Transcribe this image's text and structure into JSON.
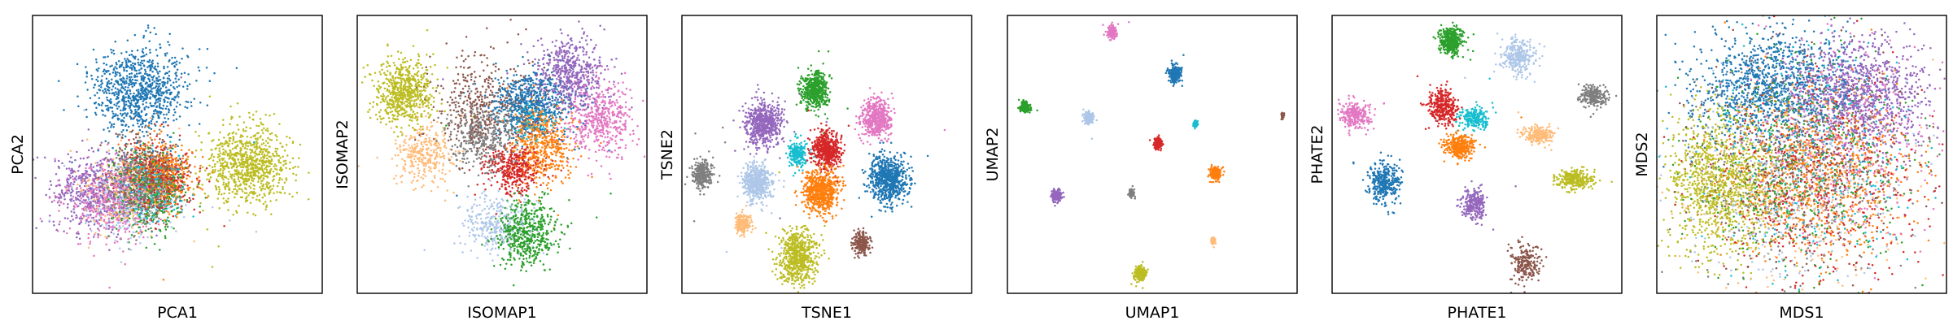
{
  "palette": {
    "blue": "#1f77b4",
    "light_blue": "#aec7e8",
    "orange": "#ff7f0e",
    "light_orange": "#ffbb78",
    "green": "#2ca02c",
    "red": "#d62728",
    "purple": "#9467bd",
    "brown": "#8c564b",
    "pink": "#e377c2",
    "gray": "#7f7f7f",
    "olive": "#bcbd22",
    "cyan": "#17becf"
  },
  "chart_data": [
    {
      "type": "scatter",
      "xlabel": "PCA1",
      "ylabel": "PCA2",
      "xlim": [
        0,
        100
      ],
      "ylim": [
        0,
        100
      ],
      "grid": false,
      "ticks": false,
      "clusters": [
        {
          "color": "blue",
          "cx": 37,
          "cy": 73,
          "sx": 8,
          "sy": 8,
          "n": 900
        },
        {
          "color": "purple",
          "cx": 22,
          "cy": 37,
          "sx": 8,
          "sy": 7,
          "n": 520
        },
        {
          "color": "pink",
          "cx": 27,
          "cy": 34,
          "sx": 8,
          "sy": 7,
          "n": 420
        },
        {
          "color": "light_blue",
          "cx": 33,
          "cy": 33,
          "sx": 7,
          "sy": 7,
          "n": 300
        },
        {
          "color": "light_orange",
          "cx": 31,
          "cy": 37,
          "sx": 7,
          "sy": 7,
          "n": 300
        },
        {
          "color": "gray",
          "cx": 38,
          "cy": 40,
          "sx": 6,
          "sy": 7,
          "n": 320
        },
        {
          "color": "brown",
          "cx": 39,
          "cy": 42,
          "sx": 6,
          "sy": 6,
          "n": 340
        },
        {
          "color": "cyan",
          "cx": 42,
          "cy": 38,
          "sx": 5,
          "sy": 6,
          "n": 260
        },
        {
          "color": "red",
          "cx": 43,
          "cy": 41,
          "sx": 6,
          "sy": 6,
          "n": 360
        },
        {
          "color": "orange",
          "cx": 45,
          "cy": 43,
          "sx": 6,
          "sy": 6,
          "n": 420
        },
        {
          "color": "green",
          "cx": 41,
          "cy": 36,
          "sx": 6,
          "sy": 7,
          "n": 380
        },
        {
          "color": "olive",
          "cx": 74,
          "cy": 46,
          "sx": 7,
          "sy": 7,
          "n": 850
        }
      ]
    },
    {
      "type": "scatter",
      "xlabel": "ISOMAP1",
      "ylabel": "ISOMAP2",
      "xlim": [
        0,
        100
      ],
      "ylim": [
        0,
        100
      ],
      "grid": false,
      "ticks": false,
      "clusters": [
        {
          "color": "olive",
          "cx": 16,
          "cy": 72,
          "sx": 5,
          "sy": 6,
          "n": 650
        },
        {
          "color": "light_orange",
          "cx": 23,
          "cy": 50,
          "sx": 5,
          "sy": 6,
          "n": 320
        },
        {
          "color": "brown",
          "cx": 44,
          "cy": 67,
          "sx": 9,
          "sy": 9,
          "n": 420
        },
        {
          "color": "gray",
          "cx": 43,
          "cy": 57,
          "sx": 6,
          "sy": 6,
          "n": 380
        },
        {
          "color": "blue",
          "cx": 60,
          "cy": 68,
          "sx": 7,
          "sy": 6,
          "n": 650
        },
        {
          "color": "orange",
          "cx": 64,
          "cy": 53,
          "sx": 5,
          "sy": 7,
          "n": 520
        },
        {
          "color": "red",
          "cx": 54,
          "cy": 45,
          "sx": 5,
          "sy": 4,
          "n": 380
        },
        {
          "color": "purple",
          "cx": 73,
          "cy": 79,
          "sx": 6,
          "sy": 6,
          "n": 560
        },
        {
          "color": "pink",
          "cx": 83,
          "cy": 63,
          "sx": 6,
          "sy": 7,
          "n": 480
        },
        {
          "color": "light_blue",
          "cx": 48,
          "cy": 25,
          "sx": 6,
          "sy": 5,
          "n": 300
        },
        {
          "color": "green",
          "cx": 58,
          "cy": 22,
          "sx": 5,
          "sy": 6,
          "n": 560
        },
        {
          "color": "cyan",
          "cx": 60,
          "cy": 62,
          "sx": 4,
          "sy": 4,
          "n": 90
        }
      ]
    },
    {
      "type": "scatter",
      "xlabel": "TSNE1",
      "ylabel": "TSNE2",
      "xlim": [
        0,
        100
      ],
      "ylim": [
        0,
        100
      ],
      "grid": false,
      "ticks": false,
      "clusters": [
        {
          "color": "green",
          "cx": 46,
          "cy": 73,
          "sx": 2.2,
          "sy": 3,
          "n": 520
        },
        {
          "color": "purple",
          "cx": 28,
          "cy": 61,
          "sx": 3.2,
          "sy": 4,
          "n": 600
        },
        {
          "color": "pink",
          "cx": 67,
          "cy": 63,
          "sx": 2.5,
          "sy": 3.5,
          "n": 520
        },
        {
          "color": "red",
          "cx": 50,
          "cy": 52,
          "sx": 2.5,
          "sy": 3.2,
          "n": 520
        },
        {
          "color": "cyan",
          "cx": 40,
          "cy": 50,
          "sx": 1.5,
          "sy": 2.0,
          "n": 220
        },
        {
          "color": "gray",
          "cx": 7,
          "cy": 43,
          "sx": 1.8,
          "sy": 2.4,
          "n": 300
        },
        {
          "color": "light_blue",
          "cx": 26,
          "cy": 40,
          "sx": 2.5,
          "sy": 3.2,
          "n": 520
        },
        {
          "color": "orange",
          "cx": 48,
          "cy": 37,
          "sx": 3.0,
          "sy": 4.0,
          "n": 640
        },
        {
          "color": "blue",
          "cx": 71,
          "cy": 41,
          "sx": 3.2,
          "sy": 4.2,
          "n": 700
        },
        {
          "color": "light_orange",
          "cx": 21,
          "cy": 25,
          "sx": 1.4,
          "sy": 1.8,
          "n": 180
        },
        {
          "color": "brown",
          "cx": 62,
          "cy": 18,
          "sx": 1.5,
          "sy": 2.0,
          "n": 220
        },
        {
          "color": "olive",
          "cx": 40,
          "cy": 13,
          "sx": 3.2,
          "sy": 4.5,
          "n": 640
        }
      ]
    },
    {
      "type": "scatter",
      "xlabel": "UMAP1",
      "ylabel": "UMAP2",
      "xlim": [
        0,
        100
      ],
      "ylim": [
        0,
        100
      ],
      "grid": false,
      "ticks": false,
      "clusters": [
        {
          "color": "pink",
          "cx": 36,
          "cy": 94,
          "sx": 0.8,
          "sy": 1.1,
          "n": 200
        },
        {
          "color": "blue",
          "cx": 58,
          "cy": 79,
          "sx": 1.0,
          "sy": 1.4,
          "n": 260
        },
        {
          "color": "green",
          "cx": 6,
          "cy": 67,
          "sx": 0.8,
          "sy": 1.0,
          "n": 180
        },
        {
          "color": "light_blue",
          "cx": 28,
          "cy": 63,
          "sx": 0.8,
          "sy": 1.0,
          "n": 160
        },
        {
          "color": "cyan",
          "cx": 65,
          "cy": 61,
          "sx": 0.4,
          "sy": 0.6,
          "n": 60
        },
        {
          "color": "brown",
          "cx": 95,
          "cy": 64,
          "sx": 0.3,
          "sy": 0.5,
          "n": 40
        },
        {
          "color": "red",
          "cx": 52,
          "cy": 54,
          "sx": 0.7,
          "sy": 1.0,
          "n": 160
        },
        {
          "color": "orange",
          "cx": 72,
          "cy": 43,
          "sx": 0.9,
          "sy": 1.2,
          "n": 220
        },
        {
          "color": "gray",
          "cx": 43,
          "cy": 36,
          "sx": 0.5,
          "sy": 0.7,
          "n": 90
        },
        {
          "color": "purple",
          "cx": 17,
          "cy": 35,
          "sx": 0.9,
          "sy": 1.1,
          "n": 200
        },
        {
          "color": "light_orange",
          "cx": 71,
          "cy": 19,
          "sx": 0.4,
          "sy": 0.6,
          "n": 60
        },
        {
          "color": "olive",
          "cx": 46,
          "cy": 7,
          "sx": 1.0,
          "sy": 1.3,
          "n": 220
        }
      ]
    },
    {
      "type": "scatter",
      "xlabel": "PHATE1",
      "ylabel": "PHATE2",
      "xlim": [
        0,
        100
      ],
      "ylim": [
        0,
        100
      ],
      "grid": false,
      "ticks": false,
      "clusters": [
        {
          "color": "green",
          "cx": 41,
          "cy": 91,
          "sx": 2.2,
          "sy": 2.5,
          "n": 380
        },
        {
          "color": "light_blue",
          "cx": 64,
          "cy": 85,
          "sx": 3.0,
          "sy": 3.0,
          "n": 300
        },
        {
          "color": "gray",
          "cx": 90,
          "cy": 71,
          "sx": 2.5,
          "sy": 1.8,
          "n": 240
        },
        {
          "color": "pink",
          "cx": 8,
          "cy": 64,
          "sx": 2.6,
          "sy": 2.6,
          "n": 260
        },
        {
          "color": "red",
          "cx": 38,
          "cy": 67,
          "sx": 2.5,
          "sy": 3.0,
          "n": 340
        },
        {
          "color": "cyan",
          "cx": 49,
          "cy": 63,
          "sx": 2.4,
          "sy": 2.0,
          "n": 220
        },
        {
          "color": "orange",
          "cx": 44,
          "cy": 53,
          "sx": 2.5,
          "sy": 2.0,
          "n": 340
        },
        {
          "color": "light_orange",
          "cx": 71,
          "cy": 57,
          "sx": 2.6,
          "sy": 1.6,
          "n": 220
        },
        {
          "color": "blue",
          "cx": 18,
          "cy": 40,
          "sx": 2.5,
          "sy": 3.5,
          "n": 340
        },
        {
          "color": "olive",
          "cx": 84,
          "cy": 41,
          "sx": 3.2,
          "sy": 1.6,
          "n": 300
        },
        {
          "color": "purple",
          "cx": 49,
          "cy": 32,
          "sx": 2.0,
          "sy": 3.0,
          "n": 260
        },
        {
          "color": "brown",
          "cx": 67,
          "cy": 11,
          "sx": 2.5,
          "sy": 3.5,
          "n": 220
        }
      ]
    },
    {
      "type": "scatter",
      "xlabel": "MDS1",
      "ylabel": "MDS2",
      "xlim": [
        0,
        100
      ],
      "ylim": [
        0,
        100
      ],
      "grid": false,
      "ticks": false,
      "clusters": [
        {
          "color": "blue",
          "cx": 40,
          "cy": 75,
          "sx": 13,
          "sy": 10,
          "n": 1100
        },
        {
          "color": "purple",
          "cx": 70,
          "cy": 72,
          "sx": 12,
          "sy": 10,
          "n": 1000
        },
        {
          "color": "olive",
          "cx": 22,
          "cy": 40,
          "sx": 9,
          "sy": 12,
          "n": 1100
        },
        {
          "color": "orange",
          "cx": 55,
          "cy": 42,
          "sx": 16,
          "sy": 16,
          "n": 700
        },
        {
          "color": "green",
          "cx": 50,
          "cy": 45,
          "sx": 20,
          "sy": 20,
          "n": 500
        },
        {
          "color": "red",
          "cx": 55,
          "cy": 40,
          "sx": 20,
          "sy": 20,
          "n": 500
        },
        {
          "color": "pink",
          "cx": 65,
          "cy": 55,
          "sx": 18,
          "sy": 18,
          "n": 420
        },
        {
          "color": "light_blue",
          "cx": 48,
          "cy": 40,
          "sx": 18,
          "sy": 18,
          "n": 380
        },
        {
          "color": "light_orange",
          "cx": 52,
          "cy": 38,
          "sx": 18,
          "sy": 18,
          "n": 380
        },
        {
          "color": "brown",
          "cx": 50,
          "cy": 50,
          "sx": 20,
          "sy": 20,
          "n": 400
        },
        {
          "color": "gray",
          "cx": 50,
          "cy": 45,
          "sx": 20,
          "sy": 20,
          "n": 360
        },
        {
          "color": "cyan",
          "cx": 55,
          "cy": 50,
          "sx": 20,
          "sy": 20,
          "n": 320
        }
      ]
    }
  ]
}
